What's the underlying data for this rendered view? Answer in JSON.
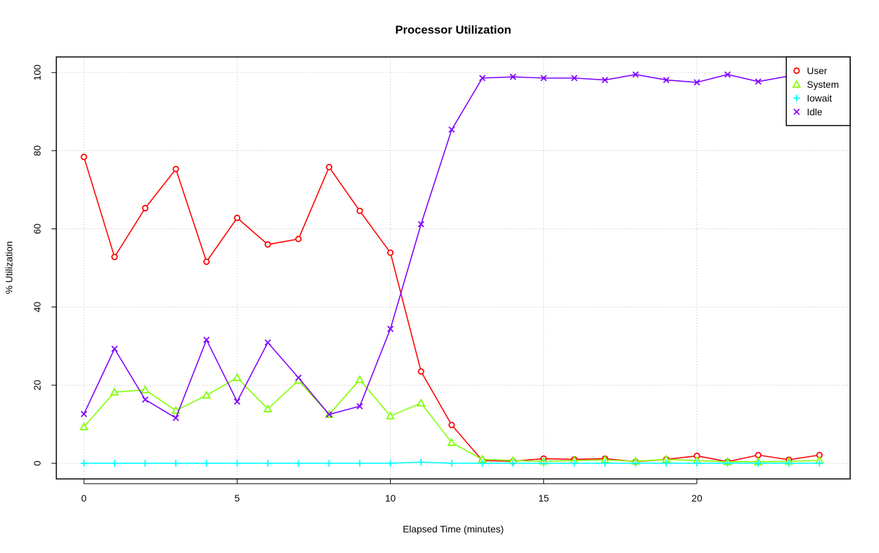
{
  "chart_data": {
    "type": "line",
    "title": "Processor Utilization",
    "xlabel": "Elapsed Time (minutes)",
    "ylabel": "% Utilization",
    "xlim": [
      -0.9,
      25
    ],
    "ylim": [
      -4,
      104
    ],
    "xticks": [
      0,
      5,
      10,
      15,
      20
    ],
    "yticks": [
      0,
      20,
      40,
      60,
      80,
      100
    ],
    "grid": true,
    "legend_position": "top-right",
    "x": [
      0,
      1,
      2,
      3,
      4,
      5,
      6,
      7,
      8,
      9,
      10,
      11,
      12,
      13,
      14,
      15,
      16,
      17,
      18,
      19,
      20,
      21,
      22,
      23,
      24
    ],
    "series": [
      {
        "name": "User",
        "color": "#ff0000",
        "marker": "circle",
        "values": [
          78.4,
          52.8,
          65.3,
          75.3,
          51.6,
          62.8,
          56.0,
          57.4,
          75.8,
          64.6,
          53.9,
          23.5,
          9.8,
          0.7,
          0.5,
          1.2,
          1.0,
          1.2,
          0.4,
          1.0,
          1.9,
          0.4,
          2.1,
          0.9,
          2.1
        ]
      },
      {
        "name": "System",
        "color": "#80ff00",
        "marker": "triangle",
        "values": [
          9.3,
          18.2,
          18.8,
          13.5,
          17.4,
          21.9,
          13.9,
          21.2,
          12.5,
          21.4,
          12.1,
          15.4,
          5.3,
          1.0,
          0.7,
          0.5,
          0.7,
          0.9,
          0.5,
          1.0,
          0.7,
          0.4,
          0.4,
          0.5,
          0.7
        ]
      },
      {
        "name": "Iowait",
        "color": "#00ffff",
        "marker": "plus",
        "values": [
          0,
          0,
          0,
          0,
          0,
          0,
          0,
          0,
          0,
          0,
          0,
          0.3,
          0,
          0,
          0,
          0,
          0,
          0,
          0,
          0,
          0,
          0,
          0,
          0,
          0
        ]
      },
      {
        "name": "Idle",
        "color": "#8000ff",
        "marker": "cross",
        "values": [
          12.6,
          29.3,
          16.3,
          11.6,
          31.6,
          15.8,
          30.9,
          21.9,
          12.5,
          14.6,
          34.4,
          61.2,
          85.4,
          98.6,
          98.9,
          98.6,
          98.6,
          98.1,
          99.5,
          98.1,
          97.5,
          99.5,
          97.7,
          99.1,
          97.4
        ]
      }
    ]
  }
}
